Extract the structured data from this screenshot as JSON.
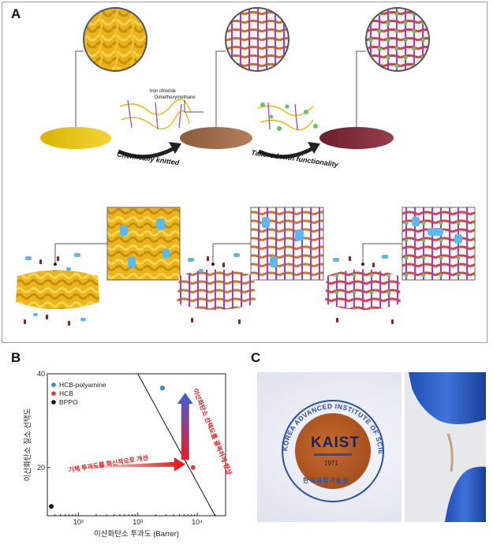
{
  "panels": {
    "a": {
      "letter": "A"
    },
    "b": {
      "letter": "B"
    },
    "c": {
      "letter": "C"
    }
  },
  "panel_a": {
    "reagent_1": "Iron chloride",
    "reagent_2": "Dimethoxymethane",
    "step_1_label": "Chemically knitted",
    "step_2_label": "Tailored with functionality"
  },
  "chart_data": {
    "type": "scatter",
    "title": "",
    "xlabel": "이산화탄소 투과도 (Barrer)",
    "ylabel": "이산화탄소 질소 선택도",
    "xscale": "log",
    "yscale": "log",
    "xlim": [
      30,
      30000
    ],
    "ylim": [
      14,
      40
    ],
    "xticks": [
      {
        "value": 100,
        "label": "10²"
      },
      {
        "value": 1000,
        "label": "10³"
      },
      {
        "value": 10000,
        "label": "10⁴"
      }
    ],
    "yticks": [
      {
        "value": 20,
        "label": "20"
      },
      {
        "value": 40,
        "label": "40"
      }
    ],
    "legend_position": "top-left",
    "series": [
      {
        "name": "HCB-polyamine",
        "color": "#2e86d6",
        "points": [
          {
            "x": 2600,
            "y": 36
          }
        ]
      },
      {
        "name": "HCB",
        "color": "#e03b3b",
        "points": [
          {
            "x": 8500,
            "y": 20
          }
        ]
      },
      {
        "name": "BPPO",
        "color": "#111111",
        "points": [
          {
            "x": 35,
            "y": 15
          }
        ]
      }
    ],
    "upper_bound_line": {
      "from": {
        "x": 1000,
        "y": 40
      },
      "to": {
        "x": 20000,
        "y": 14
      }
    },
    "annotations": [
      {
        "text": "기체 투과도를 혁신적으로 개선",
        "color": "#d81e1e"
      },
      {
        "text": "이산화탄소 선택도를 괄목하게 향상",
        "color": "#d81e1e"
      }
    ]
  },
  "panel_c": {
    "seal_text": "KOREA ADVANCED INSTITUTE OF SCIENCE AND TECHNOLOGY",
    "seal_logo": "KAIST",
    "seal_year": "1971",
    "seal_korean": "한국과학기술원"
  }
}
